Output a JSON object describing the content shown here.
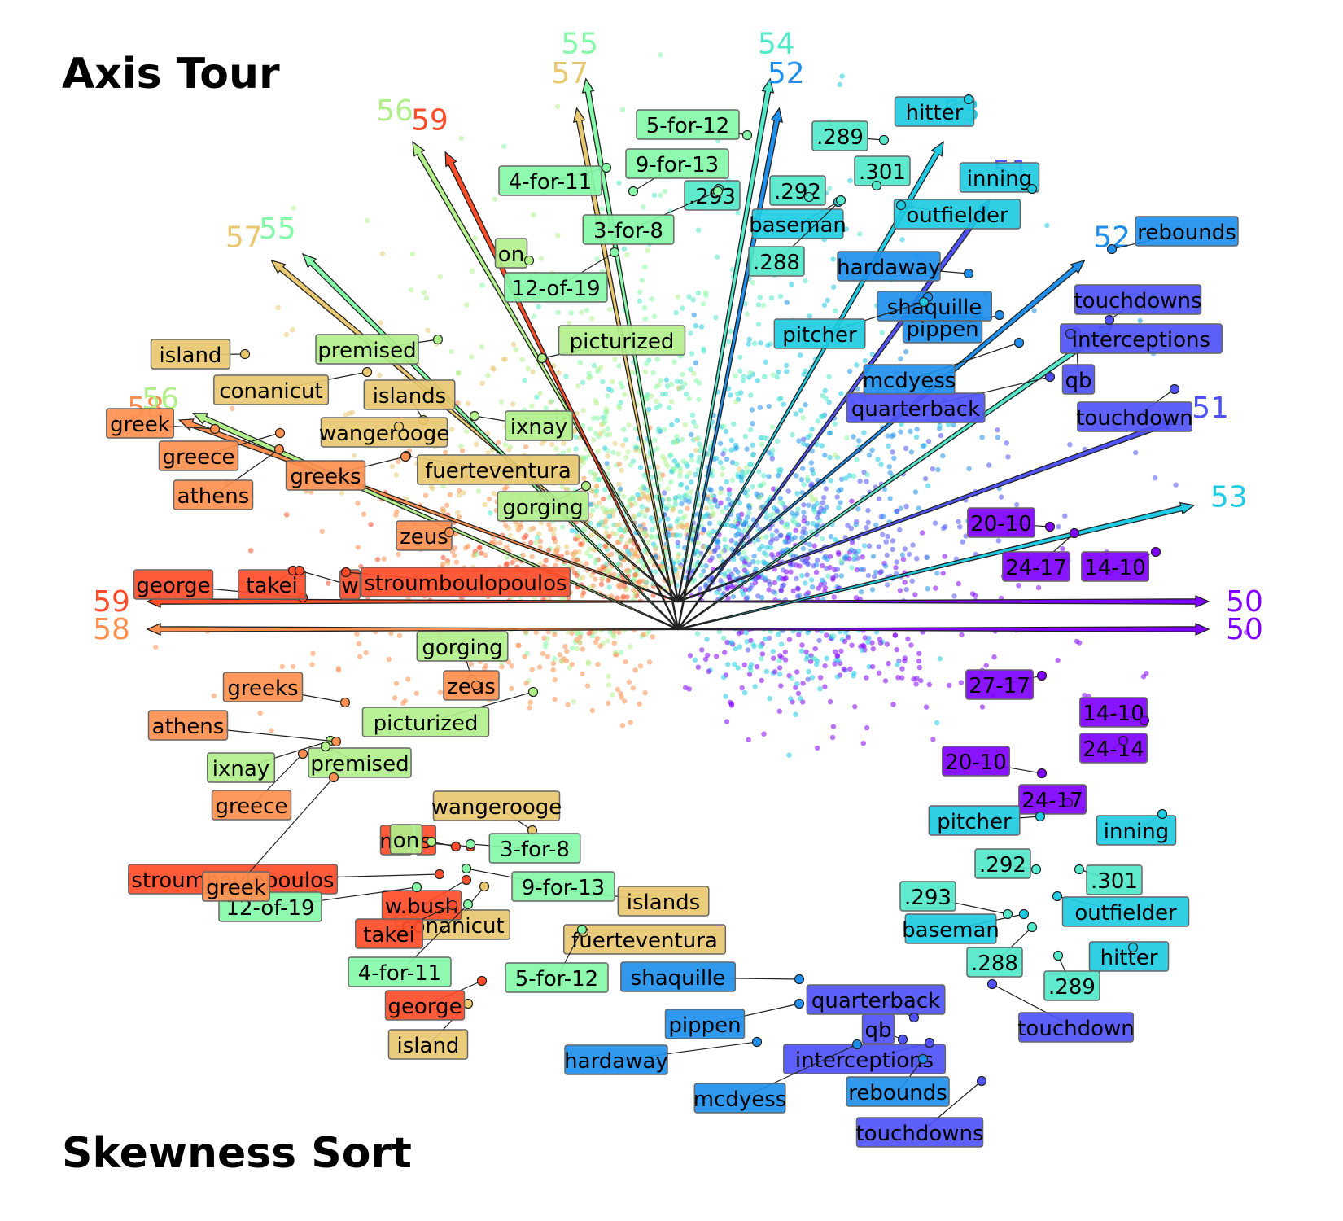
{
  "colors": {
    "50": "#7f00ff",
    "51": "#4f52f7",
    "52": "#1e8fec",
    "53": "#1fcbe2",
    "54": "#52e8c9",
    "55": "#86f9a8",
    "56": "#b2f08c",
    "57": "#e8c871",
    "58": "#ff8f4f",
    "59": "#ff4d2a"
  },
  "chart_data": [
    {
      "type": "scatter",
      "title": "Axis Tour",
      "axes": [
        {
          "id": "50",
          "label": "50",
          "angle": 0
        },
        {
          "id": "51",
          "label": "51",
          "angle": 20
        },
        {
          "id": "52",
          "label": "52",
          "angle": 40
        },
        {
          "id": "53",
          "label": "53",
          "angle": 60
        },
        {
          "id": "54",
          "label": "54",
          "angle": 80
        },
        {
          "id": "55",
          "label": "55",
          "angle": 100
        },
        {
          "id": "56",
          "label": "56",
          "angle": 120
        },
        {
          "id": "57",
          "label": "57",
          "angle": 140
        },
        {
          "id": "58",
          "label": "58",
          "angle": 160
        },
        {
          "id": "59",
          "label": "59",
          "angle": 180
        }
      ],
      "labels": [
        {
          "text": "20-10",
          "axis": "50"
        },
        {
          "text": "24-17",
          "axis": "50"
        },
        {
          "text": "14-10",
          "axis": "50"
        },
        {
          "text": "touchdown",
          "axis": "51"
        },
        {
          "text": "qb",
          "axis": "51"
        },
        {
          "text": "quarterback",
          "axis": "51"
        },
        {
          "text": "interceptions",
          "axis": "51"
        },
        {
          "text": "touchdowns",
          "axis": "51"
        },
        {
          "text": "rebounds",
          "axis": "52"
        },
        {
          "text": "mcdyess",
          "axis": "52"
        },
        {
          "text": "pippen",
          "axis": "52"
        },
        {
          "text": "shaquille",
          "axis": "52"
        },
        {
          "text": "hardaway",
          "axis": "52"
        },
        {
          "text": "hitter",
          "axis": "53"
        },
        {
          "text": "inning",
          "axis": "53"
        },
        {
          "text": "outfielder",
          "axis": "53"
        },
        {
          "text": "baseman",
          "axis": "53"
        },
        {
          "text": "pitcher",
          "axis": "53"
        },
        {
          "text": ".289",
          "axis": "54"
        },
        {
          "text": ".301",
          "axis": "54"
        },
        {
          "text": ".292",
          "axis": "54"
        },
        {
          "text": ".293",
          "axis": "54"
        },
        {
          "text": ".288",
          "axis": "54"
        },
        {
          "text": "5-for-12",
          "axis": "55"
        },
        {
          "text": "9-for-13",
          "axis": "55"
        },
        {
          "text": "4-for-11",
          "axis": "55"
        },
        {
          "text": "3-for-8",
          "axis": "55"
        },
        {
          "text": "12-of-19",
          "axis": "55"
        },
        {
          "text": "on",
          "axis": "56"
        },
        {
          "text": "picturized",
          "axis": "56"
        },
        {
          "text": "premised",
          "axis": "56"
        },
        {
          "text": "ixnay",
          "axis": "56"
        },
        {
          "text": "gorging",
          "axis": "56"
        },
        {
          "text": "island",
          "axis": "57"
        },
        {
          "text": "conanicut",
          "axis": "57"
        },
        {
          "text": "islands",
          "axis": "57"
        },
        {
          "text": "wangerooge",
          "axis": "57"
        },
        {
          "text": "fuerteventura",
          "axis": "57"
        },
        {
          "text": "greek",
          "axis": "58"
        },
        {
          "text": "greece",
          "axis": "58"
        },
        {
          "text": "athens",
          "axis": "58"
        },
        {
          "text": "greeks",
          "axis": "58"
        },
        {
          "text": "zeus",
          "axis": "58"
        },
        {
          "text": "george",
          "axis": "59"
        },
        {
          "text": "takei",
          "axis": "59"
        },
        {
          "text": "w",
          "axis": "59"
        },
        {
          "text": "stroumboulopoulos",
          "axis": "59"
        }
      ]
    },
    {
      "type": "scatter",
      "title": "Skewness Sort",
      "axes": [
        {
          "id": "50",
          "label": "50",
          "angle": 0
        },
        {
          "id": "53",
          "label": "53",
          "angle": -13.5
        },
        {
          "id": "54",
          "label": "54",
          "angle": -35
        },
        {
          "id": "51",
          "label": "51",
          "angle": -54
        },
        {
          "id": "52",
          "label": "52",
          "angle": -79
        },
        {
          "id": "57",
          "label": "57",
          "angle": -101
        },
        {
          "id": "59",
          "label": "59",
          "angle": -116
        },
        {
          "id": "55",
          "label": "55",
          "angle": -135
        },
        {
          "id": "56",
          "label": "56",
          "angle": -156
        },
        {
          "id": "58",
          "label": "58",
          "angle": 180
        }
      ],
      "labels": [
        {
          "text": "27-17",
          "axis": "50"
        },
        {
          "text": "14-10",
          "axis": "50"
        },
        {
          "text": "24-14",
          "axis": "50"
        },
        {
          "text": "20-10",
          "axis": "50"
        },
        {
          "text": "24-17",
          "axis": "50"
        },
        {
          "text": "pitcher",
          "axis": "53"
        },
        {
          "text": "inning",
          "axis": "53"
        },
        {
          "text": "outfielder",
          "axis": "53"
        },
        {
          "text": "hitter",
          "axis": "53"
        },
        {
          "text": "baseman",
          "axis": "53"
        },
        {
          "text": ".292",
          "axis": "54"
        },
        {
          "text": ".301",
          "axis": "54"
        },
        {
          "text": ".293",
          "axis": "54"
        },
        {
          "text": ".288",
          "axis": "54"
        },
        {
          "text": ".289",
          "axis": "54"
        },
        {
          "text": "touchdown",
          "axis": "51"
        },
        {
          "text": "quarterback",
          "axis": "51"
        },
        {
          "text": "qb",
          "axis": "51"
        },
        {
          "text": "interceptions",
          "axis": "51"
        },
        {
          "text": "touchdowns",
          "axis": "51"
        },
        {
          "text": "rebounds",
          "axis": "52"
        },
        {
          "text": "shaquille",
          "axis": "52"
        },
        {
          "text": "pippen",
          "axis": "52"
        },
        {
          "text": "hardaway",
          "axis": "52"
        },
        {
          "text": "mcdyess",
          "axis": "52"
        },
        {
          "text": "wangerooge",
          "axis": "57"
        },
        {
          "text": "islands",
          "axis": "57"
        },
        {
          "text": "fuerteventura",
          "axis": "57"
        },
        {
          "text": "conanicut",
          "axis": "57"
        },
        {
          "text": "island",
          "axis": "57"
        },
        {
          "text": "ma",
          "axis": "59"
        },
        {
          "text": "s",
          "axis": "59"
        },
        {
          "text": "stroumboulopoulos",
          "axis": "59"
        },
        {
          "text": "w.bush",
          "axis": "59"
        },
        {
          "text": "takei",
          "axis": "59"
        },
        {
          "text": "george",
          "axis": "59"
        },
        {
          "text": "3-for-8",
          "axis": "55"
        },
        {
          "text": "9-for-13",
          "axis": "55"
        },
        {
          "text": "12-of-19",
          "axis": "55"
        },
        {
          "text": "4-for-11",
          "axis": "55"
        },
        {
          "text": "5-for-12",
          "axis": "55"
        },
        {
          "text": "gorging",
          "axis": "56"
        },
        {
          "text": "picturized",
          "axis": "56"
        },
        {
          "text": "ixnay",
          "axis": "56"
        },
        {
          "text": "premised",
          "axis": "56"
        },
        {
          "text": "on",
          "axis": "56"
        },
        {
          "text": "zeus",
          "axis": "58"
        },
        {
          "text": "greeks",
          "axis": "58"
        },
        {
          "text": "athens",
          "axis": "58"
        },
        {
          "text": "greece",
          "axis": "58"
        },
        {
          "text": "greek",
          "axis": "58"
        }
      ]
    }
  ]
}
